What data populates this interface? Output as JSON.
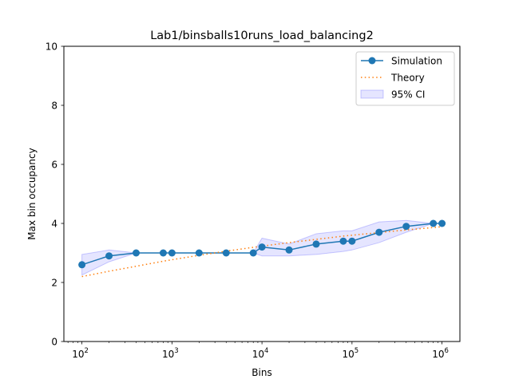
{
  "chart_data": {
    "type": "line",
    "title": "Lab1/binsballs10runs_load_balancing2",
    "xlabel": "Bins",
    "ylabel": "Max bin occupancy",
    "xscale": "log",
    "xlim": [
      63,
      1580000
    ],
    "ylim": [
      0,
      10
    ],
    "x_ticks": [
      100,
      1000,
      10000,
      100000,
      1000000
    ],
    "x_tick_labels": [
      {
        "base": "10",
        "exp": "2"
      },
      {
        "base": "10",
        "exp": "3"
      },
      {
        "base": "10",
        "exp": "4"
      },
      {
        "base": "10",
        "exp": "5"
      },
      {
        "base": "10",
        "exp": "6"
      }
    ],
    "y_ticks": [
      0,
      2,
      4,
      6,
      8,
      10
    ],
    "y_tick_labels": [
      "0",
      "2",
      "4",
      "6",
      "8",
      "10"
    ],
    "grid": false,
    "legend_position": "top-right",
    "series": [
      {
        "name": "Simulation",
        "style": "line-marker",
        "color": "#1f77b4",
        "x": [
          100,
          200,
          400,
          800,
          1000,
          2000,
          4000,
          8000,
          10000,
          20000,
          40000,
          80000,
          100000,
          200000,
          400000,
          800000,
          1000000
        ],
        "values": [
          2.6,
          2.9,
          3.0,
          3.0,
          3.0,
          3.0,
          3.0,
          3.0,
          3.2,
          3.1,
          3.3,
          3.4,
          3.4,
          3.7,
          3.9,
          4.0,
          4.0
        ]
      },
      {
        "name": "Theory",
        "style": "dotted",
        "color": "#ff7f0e",
        "x": [
          100,
          200,
          400,
          800,
          1000,
          2000,
          4000,
          8000,
          10000,
          20000,
          40000,
          80000,
          100000,
          200000,
          400000,
          800000,
          1000000
        ],
        "values": [
          2.2,
          2.38,
          2.55,
          2.72,
          2.77,
          2.92,
          3.06,
          3.19,
          3.23,
          3.35,
          3.46,
          3.57,
          3.6,
          3.69,
          3.78,
          3.86,
          3.89
        ]
      },
      {
        "name": "95% CI",
        "style": "band",
        "color": "#0000ff",
        "x": [
          100,
          200,
          400,
          800,
          1000,
          2000,
          4000,
          8000,
          10000,
          20000,
          40000,
          80000,
          100000,
          200000,
          400000,
          800000,
          1000000
        ],
        "lower": [
          2.25,
          2.7,
          3.0,
          3.0,
          3.0,
          3.0,
          3.0,
          3.0,
          2.9,
          2.9,
          2.95,
          3.05,
          3.1,
          3.35,
          3.7,
          4.0,
          4.0
        ],
        "upper": [
          2.95,
          3.1,
          3.0,
          3.0,
          3.0,
          3.0,
          3.0,
          3.0,
          3.5,
          3.3,
          3.65,
          3.75,
          3.75,
          4.05,
          4.1,
          4.0,
          4.0
        ]
      }
    ]
  }
}
